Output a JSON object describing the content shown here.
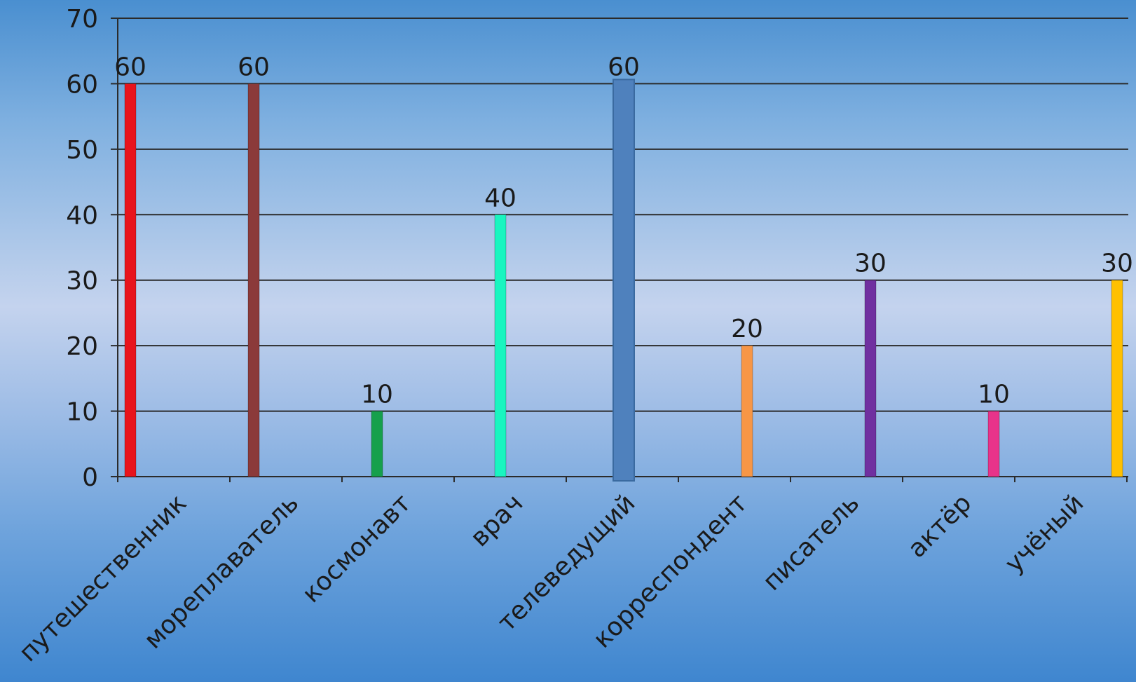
{
  "chart_data": {
    "type": "bar",
    "categories": [
      "путешественник",
      "мореплаватель",
      "космонавт",
      "врач",
      "телеведущий",
      "корреспондент",
      "писатель",
      "актёр",
      "учёный"
    ],
    "series": [
      {
        "values": [
          60,
          60,
          10,
          40,
          60,
          20,
          30,
          10,
          30
        ],
        "colors": [
          "#e8141c",
          "#8b3a3a",
          "#16a04c",
          "#19f5c0",
          "#4f81bd",
          "#f79646",
          "#7030a0",
          "#e8338a",
          "#ffc000"
        ]
      }
    ],
    "data_labels": [
      "60",
      "60",
      "10",
      "40",
      "60",
      "20",
      "30",
      "10",
      "30"
    ],
    "y_ticks": [
      "0",
      "10",
      "20",
      "30",
      "40",
      "50",
      "60",
      "70"
    ],
    "ylim": [
      0,
      70
    ],
    "grid": true,
    "title": "",
    "xlabel": "",
    "ylabel": ""
  }
}
